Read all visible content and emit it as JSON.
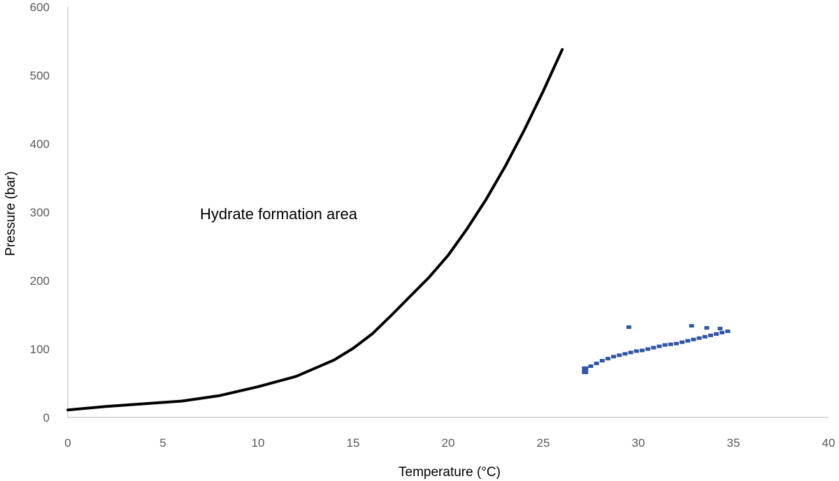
{
  "chart_data": {
    "type": "scatter",
    "title": "",
    "xlabel": "Temperature  (°C)",
    "ylabel": "Pressure (bar)",
    "xlim": [
      0,
      40
    ],
    "ylim": [
      0,
      600
    ],
    "xticks": [
      "0",
      "5",
      "10",
      "15",
      "20",
      "25",
      "30",
      "35",
      "40"
    ],
    "yticks": [
      "0",
      "100",
      "200",
      "300",
      "400",
      "500",
      "600"
    ],
    "grid": false,
    "legend": "none",
    "annotation": "Hydrate formation area",
    "series": [
      {
        "style": "line",
        "color": "#000000",
        "x": [
          0,
          2,
          4,
          6,
          8,
          10,
          12,
          14,
          15,
          16,
          17,
          18,
          19,
          20,
          21,
          22,
          23,
          24,
          25,
          26
        ],
        "y": [
          11,
          16,
          20,
          24,
          32,
          45,
          60,
          84,
          101,
          122,
          149,
          177,
          205,
          237,
          276,
          319,
          367,
          420,
          477,
          538
        ]
      },
      {
        "style": "markers",
        "color": "#2f55a4",
        "x": [
          27.2,
          27.5,
          27.8,
          28.1,
          28.4,
          28.7,
          29.0,
          29.3,
          29.6,
          29.9,
          30.2,
          30.5,
          30.8,
          31.1,
          31.4,
          31.7,
          32.0,
          32.3,
          32.6,
          32.9,
          33.2,
          33.5,
          33.8,
          34.1,
          34.4,
          34.7,
          29.5,
          32.8,
          33.6,
          34.3
        ],
        "y": [
          69,
          75,
          79,
          83,
          86,
          89,
          91,
          93,
          95,
          97,
          98,
          100,
          102,
          104,
          106,
          107,
          108,
          110,
          112,
          114,
          116,
          118,
          120,
          122,
          124,
          126,
          132,
          134,
          131,
          130
        ]
      }
    ]
  }
}
